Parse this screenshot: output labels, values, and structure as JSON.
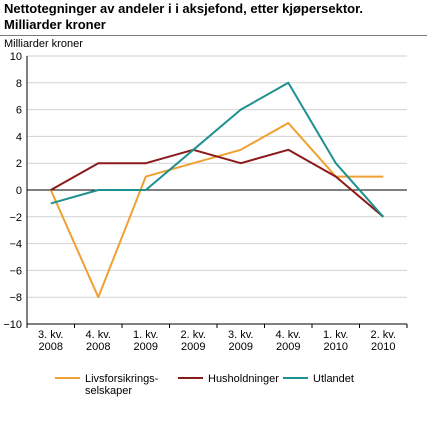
{
  "chart_data": {
    "type": "line",
    "title_lines": [
      "Nettotegninger av andeler i i aksjefond, etter kjøpersektor.",
      "Milliarder kroner"
    ],
    "ylabel": "Milliarder kroner",
    "ylim": [
      -10,
      10
    ],
    "yticks": [
      10,
      8,
      6,
      4,
      2,
      0,
      -2,
      -4,
      -6,
      -8,
      -10
    ],
    "categories": [
      [
        "3. kv.",
        "2008"
      ],
      [
        "4. kv.",
        "2008"
      ],
      [
        "1. kv.",
        "2009"
      ],
      [
        "2. kv.",
        "2009"
      ],
      [
        "3. kv.",
        "2009"
      ],
      [
        "4. kv.",
        "2009"
      ],
      [
        "1. kv.",
        "2010"
      ],
      [
        "2. kv.",
        "2010"
      ]
    ],
    "grid": "horizontal",
    "legend_position": "bottom",
    "series": [
      {
        "name_lines": [
          "Livsforsikrings-",
          "selskaper"
        ],
        "color": "#f0a030",
        "values": [
          0,
          -8,
          1,
          2,
          3,
          5,
          1,
          1
        ]
      },
      {
        "name_lines": [
          "Husholdninger"
        ],
        "color": "#8b1a1a",
        "values": [
          0,
          2,
          2,
          3,
          2,
          3,
          1,
          -2
        ]
      },
      {
        "name_lines": [
          "Utlandet"
        ],
        "color": "#1f9090",
        "values": [
          -1,
          0,
          0,
          3,
          6,
          8,
          2,
          -2
        ]
      }
    ]
  }
}
